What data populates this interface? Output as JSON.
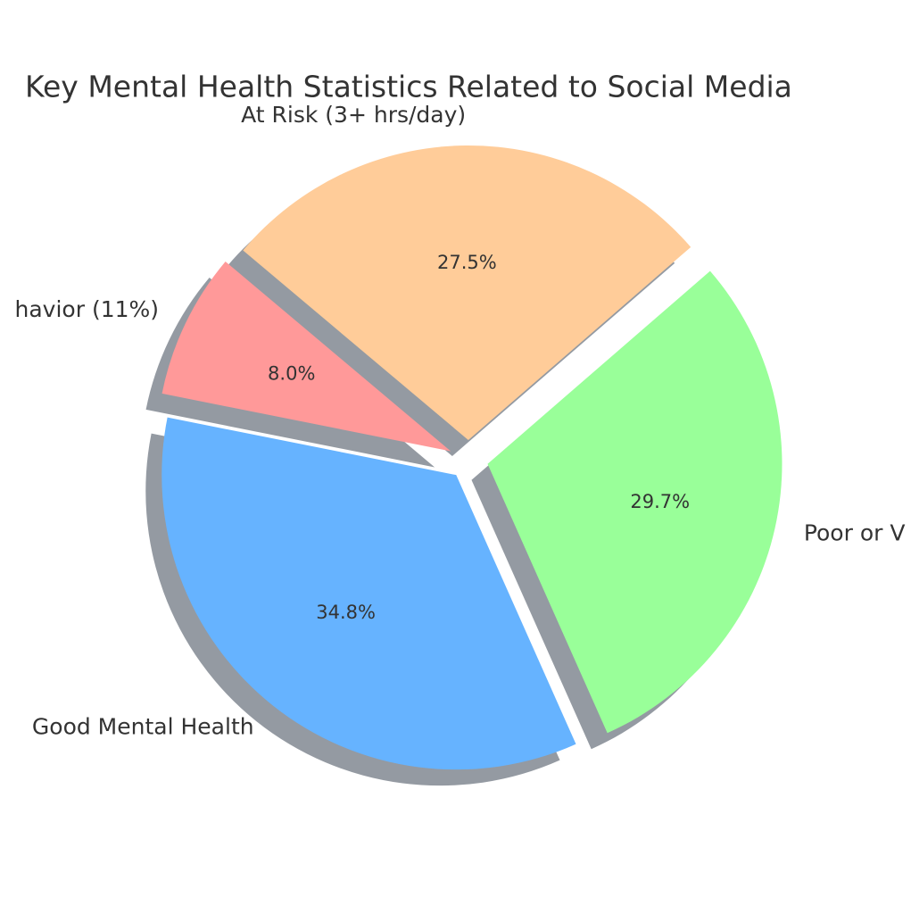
{
  "chart_data": {
    "type": "pie",
    "title": "Key Mental Health Statistics Related to Social Media",
    "categories": [
      "Poor or V",
      "At Risk (3+ hrs/day)",
      "havior (11%)",
      "Good Mental Health"
    ],
    "values": [
      29.7,
      27.5,
      8.0,
      34.8
    ],
    "value_labels": [
      "29.7%",
      "27.5%",
      "8.0%",
      "34.8%"
    ],
    "colors": [
      "#99ff99",
      "#ffcc99",
      "#ff9999",
      "#66b3ff"
    ],
    "shadow": true
  }
}
